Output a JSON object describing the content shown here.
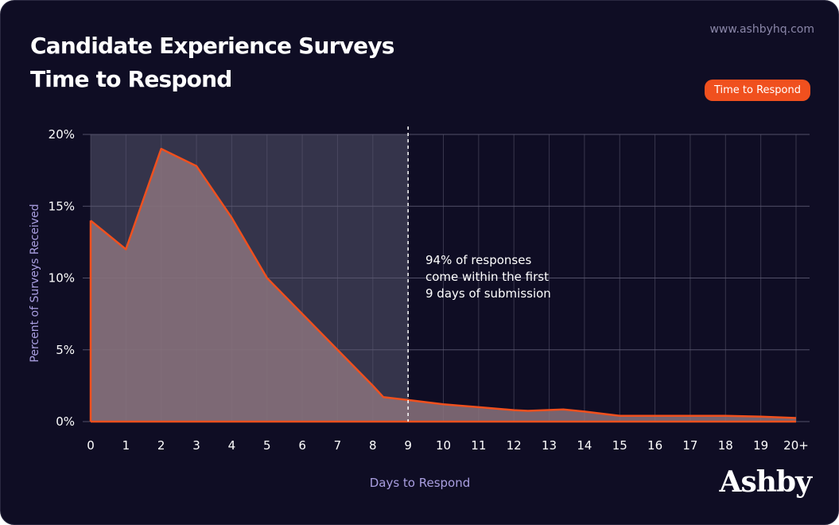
{
  "header": {
    "title_line1": "Candidate Experience Surveys",
    "title_line2": "Time to Respond",
    "site": "www.ashbyhq.com",
    "brand": "Ashby"
  },
  "colors": {
    "background": "#0f0d24",
    "accent": "#f0501e",
    "area_fill": "#8a737d",
    "highlight_band": "#3a3850",
    "grid": "#5a5870",
    "axis_label": "#a99ee0"
  },
  "chart_data": {
    "type": "area",
    "title": "Candidate Experience Surveys Time to Respond",
    "xlabel": "Days to Respond",
    "ylabel": "Percent of Surveys Received",
    "x_tick_labels": [
      "0",
      "1",
      "2",
      "3",
      "4",
      "5",
      "6",
      "7",
      "8",
      "9",
      "10",
      "11",
      "12",
      "13",
      "14",
      "15",
      "16",
      "17",
      "18",
      "19",
      "20+"
    ],
    "y_ticks": [
      {
        "value": 0,
        "label": "0%"
      },
      {
        "value": 5,
        "label": "5%"
      },
      {
        "value": 10,
        "label": "10%"
      },
      {
        "value": 15,
        "label": "15%"
      },
      {
        "value": 20,
        "label": "20%"
      }
    ],
    "xlim": [
      0,
      20
    ],
    "ylim": [
      0,
      20
    ],
    "grid": true,
    "legend_position": "top-right",
    "series": [
      {
        "name": "Time to Respond",
        "color": "#f0501e",
        "x": [
          0,
          1,
          2,
          3,
          4,
          5,
          6,
          7,
          8,
          8.3,
          9,
          10,
          11,
          12,
          12.4,
          13.4,
          14,
          15,
          16,
          17,
          18,
          19,
          20
        ],
        "y": [
          14,
          12,
          19,
          17.8,
          14.2,
          10,
          7.5,
          5,
          2.5,
          1.7,
          1.5,
          1.2,
          1.0,
          0.8,
          0.75,
          0.85,
          0.7,
          0.4,
          0.4,
          0.4,
          0.4,
          0.35,
          0.25
        ]
      }
    ],
    "highlight": {
      "x_start": 0,
      "x_end": 9
    },
    "reference_line": {
      "x": 9
    },
    "annotation": {
      "lines": [
        "94% of responses",
        "come within the first",
        "9 days of submission"
      ]
    }
  }
}
